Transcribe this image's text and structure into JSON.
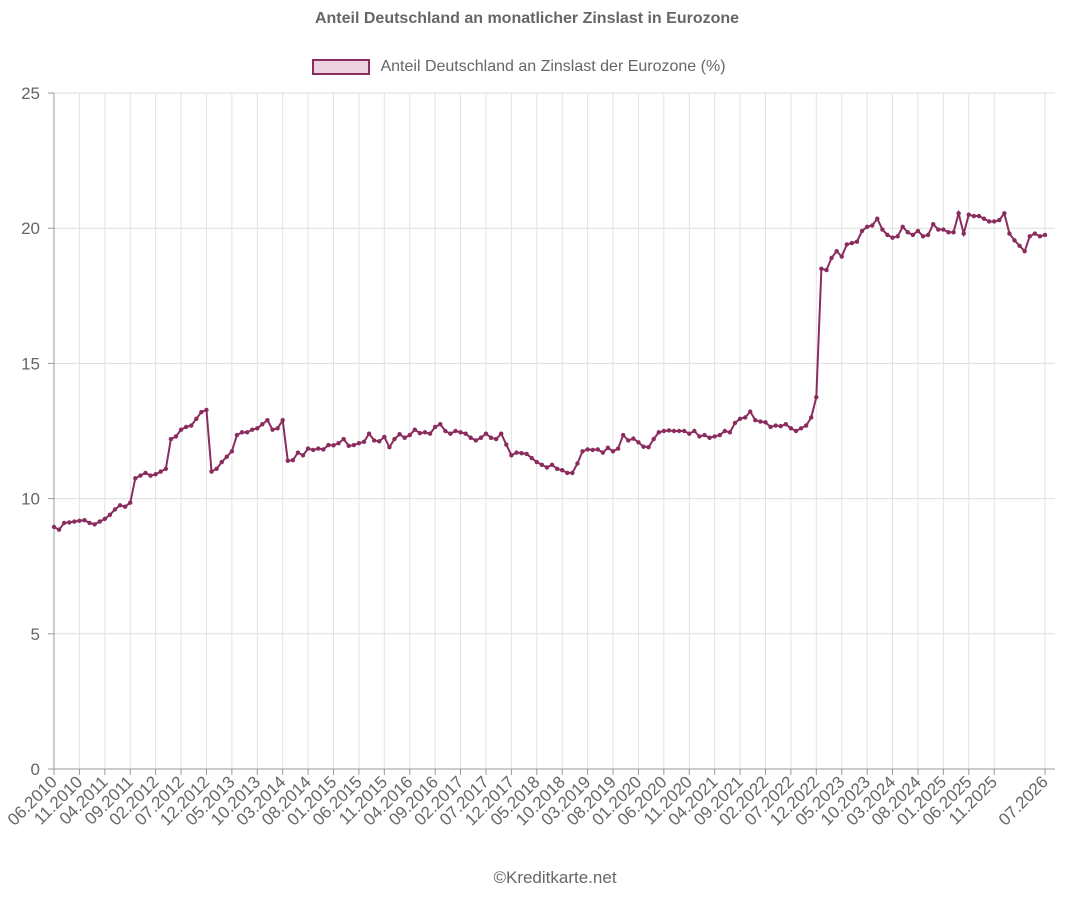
{
  "chart_data": {
    "type": "line",
    "title": "Anteil Deutschland an monatlicher Zinslast in Eurozone",
    "legend": {
      "placement": "top-center"
    },
    "series": [
      {
        "name": "Anteil Deutschland an Zinslast der Eurozone (%)",
        "color": "#8b2c5e",
        "fill": "#ecd1df",
        "values": [
          8.95,
          8.85,
          9.1,
          9.12,
          9.15,
          9.18,
          9.2,
          9.1,
          9.05,
          9.15,
          9.25,
          9.4,
          9.6,
          9.75,
          9.7,
          9.85,
          10.75,
          10.85,
          10.95,
          10.85,
          10.9,
          11.0,
          11.1,
          12.2,
          12.3,
          12.55,
          12.65,
          12.7,
          12.95,
          13.2,
          13.28,
          11.0,
          11.1,
          11.35,
          11.55,
          11.75,
          12.35,
          12.45,
          12.45,
          12.55,
          12.6,
          12.75,
          12.9,
          12.55,
          12.6,
          12.9,
          11.4,
          11.42,
          11.7,
          11.6,
          11.85,
          11.8,
          11.85,
          11.82,
          11.98,
          11.97,
          12.05,
          12.2,
          11.95,
          11.98,
          12.05,
          12.1,
          12.4,
          12.15,
          12.12,
          12.28,
          11.9,
          12.2,
          12.38,
          12.25,
          12.35,
          12.55,
          12.42,
          12.45,
          12.4,
          12.65,
          12.75,
          12.5,
          12.4,
          12.5,
          12.45,
          12.4,
          12.25,
          12.15,
          12.25,
          12.4,
          12.25,
          12.2,
          12.4,
          12.0,
          11.6,
          11.7,
          11.68,
          11.65,
          11.5,
          11.35,
          11.25,
          11.15,
          11.25,
          11.1,
          11.05,
          10.95,
          10.95,
          11.3,
          11.75,
          11.82,
          11.8,
          11.82,
          11.7,
          11.88,
          11.75,
          11.85,
          12.35,
          12.15,
          12.22,
          12.08,
          11.92,
          11.9,
          12.2,
          12.45,
          12.5,
          12.52,
          12.5,
          12.5,
          12.5,
          12.4,
          12.5,
          12.3,
          12.35,
          12.25,
          12.3,
          12.35,
          12.5,
          12.45,
          12.8,
          12.95,
          13.0,
          13.22,
          12.9,
          12.85,
          12.82,
          12.65,
          12.7,
          12.68,
          12.75,
          12.6,
          12.5,
          12.6,
          12.7,
          13.0,
          13.75,
          18.5,
          18.45,
          18.9,
          19.15,
          18.95,
          19.4,
          19.45,
          19.5,
          19.9,
          20.05,
          20.1,
          20.35,
          19.95,
          19.75,
          19.65,
          19.7,
          20.05,
          19.85,
          19.75,
          19.9,
          19.7,
          19.75,
          20.15,
          19.95,
          19.95,
          19.85,
          19.85,
          20.55,
          19.8,
          20.5,
          20.45,
          20.45,
          20.35,
          20.25,
          20.25,
          20.3,
          20.55,
          19.8,
          19.55,
          19.35,
          19.15,
          19.7,
          19.8,
          19.7,
          19.75
        ]
      }
    ],
    "x_tick_labels": [
      "06.2010",
      "11.2010",
      "04.2011",
      "09.2011",
      "02.2012",
      "07.2012",
      "12.2012",
      "05.2013",
      "10.2013",
      "03.2014",
      "08.2014",
      "01.2015",
      "06.2015",
      "11.2015",
      "04.2016",
      "09.2016",
      "02.2017",
      "07.2017",
      "12.2017",
      "05.2018",
      "10.2018",
      "03.2019",
      "08.2019",
      "01.2020",
      "06.2020",
      "11.2020",
      "04.2021",
      "09.2021",
      "02.2022",
      "07.2022",
      "12.2022",
      "05.2023",
      "10.2023",
      "03.2024",
      "08.2024",
      "01.2025",
      "06.2025",
      "11.2025",
      "07.2026"
    ],
    "y_ticks": [
      "0",
      "5",
      "10",
      "15",
      "20",
      "25"
    ],
    "ylim": [
      0,
      25
    ],
    "grid": true
  },
  "footer": {
    "credit": "©Kreditkarte.net"
  }
}
